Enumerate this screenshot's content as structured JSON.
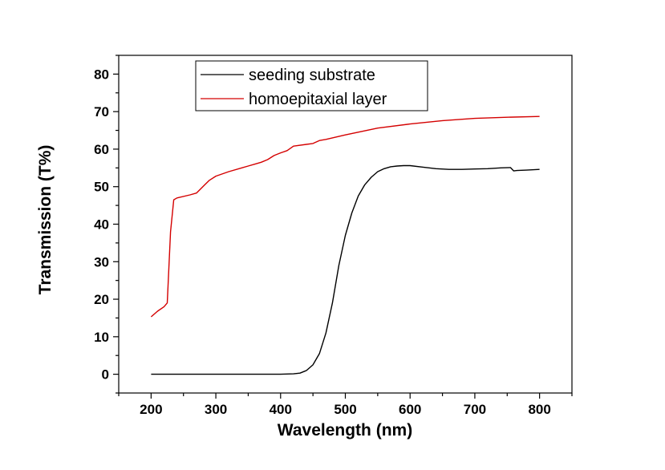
{
  "chart_data": {
    "type": "line",
    "xlabel": "Wavelength (nm)",
    "ylabel": "Transmission (T%)",
    "xlim": [
      150,
      850
    ],
    "ylim": [
      -5,
      85
    ],
    "x_ticks": [
      200,
      300,
      400,
      500,
      600,
      700,
      800
    ],
    "x_tick_labels": [
      "200",
      "300",
      "400",
      "500",
      "600",
      "700",
      "800"
    ],
    "y_ticks": [
      0,
      10,
      20,
      30,
      40,
      50,
      60,
      70,
      80
    ],
    "y_tick_labels": [
      "0",
      "10",
      "20",
      "30",
      "40",
      "50",
      "60",
      "70",
      "80"
    ],
    "grid": false,
    "legend_position": "top-left",
    "series": [
      {
        "name": "seeding substrate",
        "color": "#000000",
        "x": [
          200,
          300,
          400,
          420,
          430,
          440,
          450,
          460,
          470,
          480,
          490,
          500,
          510,
          520,
          530,
          540,
          550,
          560,
          570,
          580,
          590,
          600,
          620,
          640,
          660,
          680,
          700,
          720,
          740,
          755,
          760,
          765,
          780,
          800
        ],
        "y": [
          0,
          0,
          0,
          0.1,
          0.3,
          1,
          2.5,
          5.5,
          11,
          19,
          29,
          37,
          43,
          47.5,
          50.5,
          52.5,
          54,
          54.8,
          55.3,
          55.5,
          55.6,
          55.6,
          55.2,
          54.8,
          54.6,
          54.6,
          54.7,
          54.8,
          55,
          55.1,
          54.2,
          54.3,
          54.4,
          54.6
        ]
      },
      {
        "name": "homoepitaxial layer",
        "color": "#d40000",
        "x": [
          200,
          210,
          220,
          225,
          230,
          235,
          240,
          260,
          270,
          280,
          290,
          300,
          320,
          340,
          350,
          360,
          370,
          380,
          390,
          400,
          410,
          420,
          450,
          460,
          470,
          500,
          550,
          600,
          650,
          700,
          750,
          800
        ],
        "y": [
          15.3,
          16.8,
          18,
          19,
          38,
          46.5,
          47,
          47.8,
          48.3,
          50,
          51.7,
          52.8,
          54,
          55,
          55.5,
          56,
          56.5,
          57.2,
          58.3,
          59,
          59.6,
          60.8,
          61.5,
          62.3,
          62.6,
          63.8,
          65.6,
          66.7,
          67.6,
          68.2,
          68.5,
          68.7
        ]
      }
    ]
  }
}
